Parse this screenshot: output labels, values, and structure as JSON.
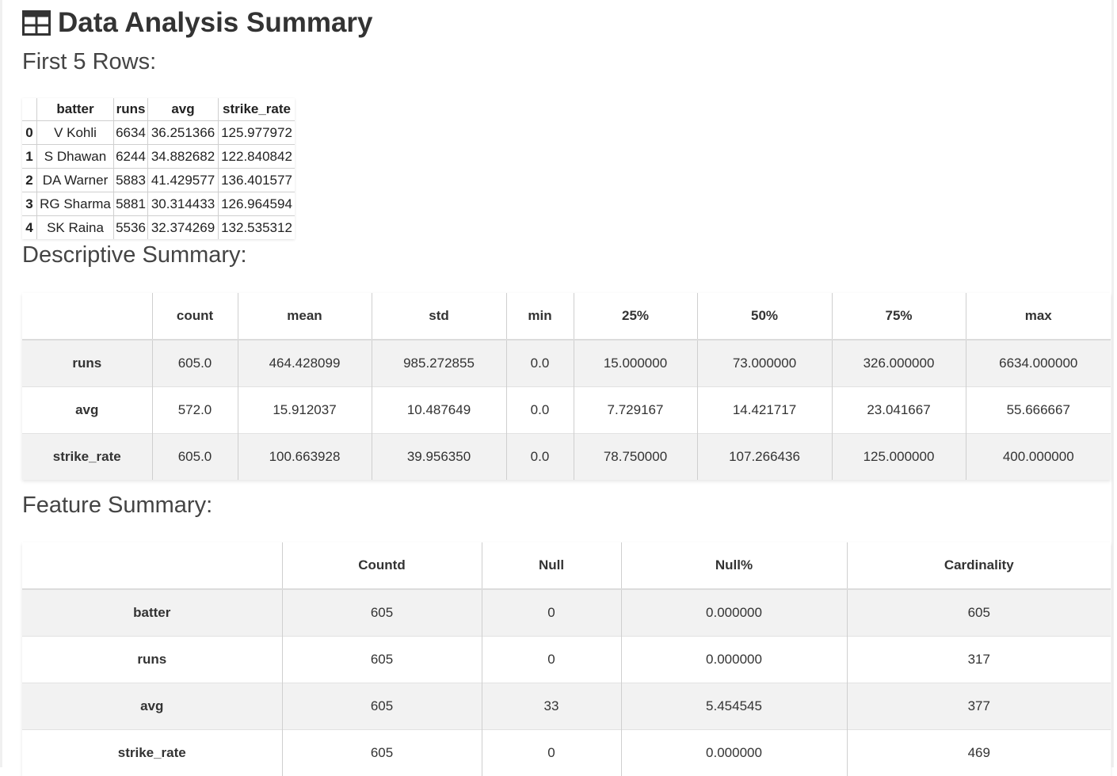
{
  "page": {
    "title": "Data Analysis Summary",
    "title_icon": "table-icon"
  },
  "sections": {
    "first_rows": "First 5 Rows:",
    "descriptive": "Descriptive Summary:",
    "feature": "Feature Summary:"
  },
  "first_rows_table": {
    "columns": [
      "batter",
      "runs",
      "avg",
      "strike_rate"
    ],
    "rows": [
      {
        "index": "0",
        "cells": [
          "V Kohli",
          "6634",
          "36.251366",
          "125.977972"
        ]
      },
      {
        "index": "1",
        "cells": [
          "S Dhawan",
          "6244",
          "34.882682",
          "122.840842"
        ]
      },
      {
        "index": "2",
        "cells": [
          "DA Warner",
          "5883",
          "41.429577",
          "136.401577"
        ]
      },
      {
        "index": "3",
        "cells": [
          "RG Sharma",
          "5881",
          "30.314433",
          "126.964594"
        ]
      },
      {
        "index": "4",
        "cells": [
          "SK Raina",
          "5536",
          "32.374269",
          "132.535312"
        ]
      }
    ]
  },
  "descriptive_table": {
    "columns": [
      "count",
      "mean",
      "std",
      "min",
      "25%",
      "50%",
      "75%",
      "max"
    ],
    "rows": [
      {
        "index": "runs",
        "cells": [
          "605.0",
          "464.428099",
          "985.272855",
          "0.0",
          "15.000000",
          "73.000000",
          "326.000000",
          "6634.000000"
        ]
      },
      {
        "index": "avg",
        "cells": [
          "572.0",
          "15.912037",
          "10.487649",
          "0.0",
          "7.729167",
          "14.421717",
          "23.041667",
          "55.666667"
        ]
      },
      {
        "index": "strike_rate",
        "cells": [
          "605.0",
          "100.663928",
          "39.956350",
          "0.0",
          "78.750000",
          "107.266436",
          "125.000000",
          "400.000000"
        ]
      }
    ]
  },
  "feature_table": {
    "columns": [
      "Countd",
      "Null",
      "Null%",
      "Cardinality"
    ],
    "rows": [
      {
        "index": "batter",
        "cells": [
          "605",
          "0",
          "0.000000",
          "605"
        ]
      },
      {
        "index": "runs",
        "cells": [
          "605",
          "0",
          "0.000000",
          "317"
        ]
      },
      {
        "index": "avg",
        "cells": [
          "605",
          "33",
          "5.454545",
          "377"
        ]
      },
      {
        "index": "strike_rate",
        "cells": [
          "605",
          "0",
          "0.000000",
          "469"
        ]
      }
    ]
  }
}
